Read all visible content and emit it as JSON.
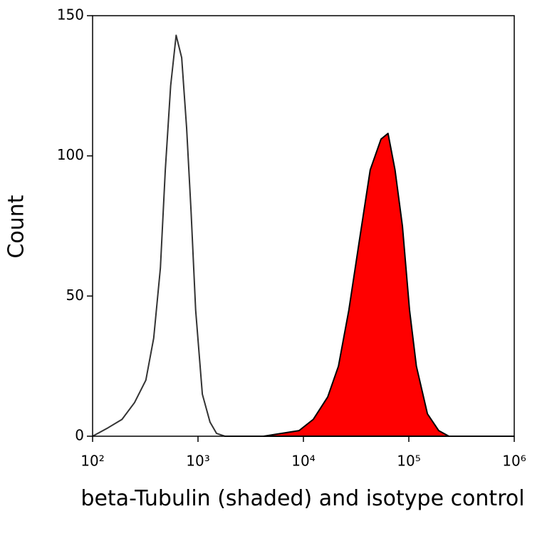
{
  "chart_data": {
    "type": "histogram",
    "x_label": "beta-Tubulin (shaded) and isotype control",
    "y_label": "Count",
    "xscale": "log",
    "xlim": [
      100,
      1000000
    ],
    "ylim": [
      0,
      150
    ],
    "xticks": [
      {
        "value": 100,
        "label": "10²"
      },
      {
        "value": 1000,
        "label": "10³"
      },
      {
        "value": 10000,
        "label": "10⁴"
      },
      {
        "value": 100000,
        "label": "10⁵"
      },
      {
        "value": 1000000,
        "label": "10⁶"
      }
    ],
    "yticks": [
      0,
      50,
      100,
      150
    ],
    "series": [
      {
        "color": "#333333",
        "filled": false,
        "x": [
          100,
          140,
          190,
          250,
          320,
          380,
          440,
          490,
          550,
          620,
          700,
          780,
          860,
          950,
          1100,
          1300,
          1500,
          1800,
          1000000
        ],
        "values": [
          0,
          3,
          6,
          12,
          20,
          35,
          60,
          95,
          125,
          143,
          135,
          110,
          80,
          45,
          15,
          5,
          1,
          0,
          0
        ]
      },
      {
        "color": "#000000",
        "fill": "#ff0000",
        "filled": true,
        "x": [
          4200,
          9100,
          12400,
          17000,
          21500,
          27000,
          34000,
          43000,
          54500,
          63500,
          74000,
          87000,
          101600,
          118000,
          150000,
          192000,
          240000
        ],
        "values": [
          0,
          2,
          6,
          14,
          25,
          45,
          70,
          95,
          106,
          108,
          95,
          75,
          45,
          25,
          8,
          2,
          0
        ]
      }
    ]
  }
}
